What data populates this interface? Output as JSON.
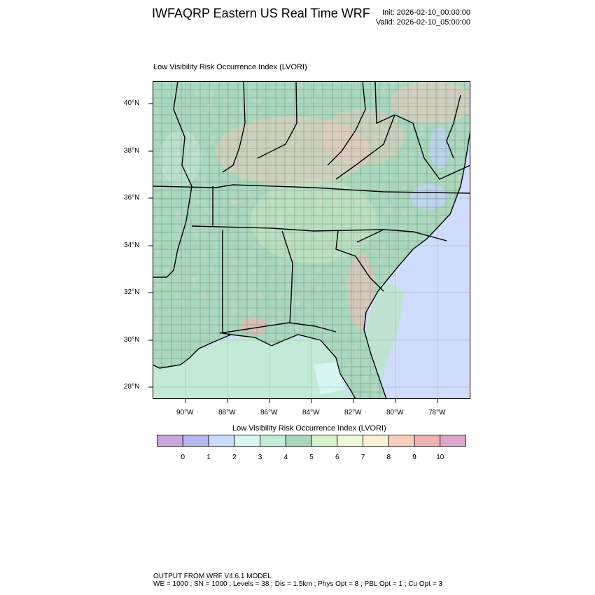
{
  "header": {
    "title": "IWFAQRP Eastern US Real Time WRF",
    "init": "Init: 2026-02-10_00:00:00",
    "valid": "Valid: 2026-02-10_05:00:00"
  },
  "map": {
    "subtitle": "Low Visibility Risk Occurrence Index   (LVORI)",
    "lat_labels": [
      "40°N",
      "38°N",
      "36°N",
      "34°N",
      "32°N",
      "30°N",
      "28°N"
    ],
    "lon_labels": [
      "90°W",
      "88°W",
      "86°W",
      "84°W",
      "82°W",
      "80°W",
      "78°W"
    ]
  },
  "colorbar": {
    "title": "Low Visibility Risk Occurrence Index  (LVORI)",
    "labels": [
      "0",
      "1",
      "2",
      "3",
      "4",
      "5",
      "6",
      "7",
      "8",
      "9",
      "10"
    ],
    "colors": [
      "#c9a7dc",
      "#b4b8ee",
      "#c9dcfb",
      "#d9f7f0",
      "#c3ecd6",
      "#a8d8bb",
      "#d8f1c8",
      "#eefad8",
      "#fdf1d3",
      "#f8cdbc",
      "#f0b0b0",
      "#dba8cc"
    ]
  },
  "footer": {
    "line1": "OUTPUT FROM WRF V4.6.1 MODEL",
    "line2": "WE = 1000 ; SN = 1000 ; Levels = 38 ; Dis = 1.5km ; Phys Opt = 8 ; PBL Opt = 1 ; Cu Opt = 3"
  }
}
